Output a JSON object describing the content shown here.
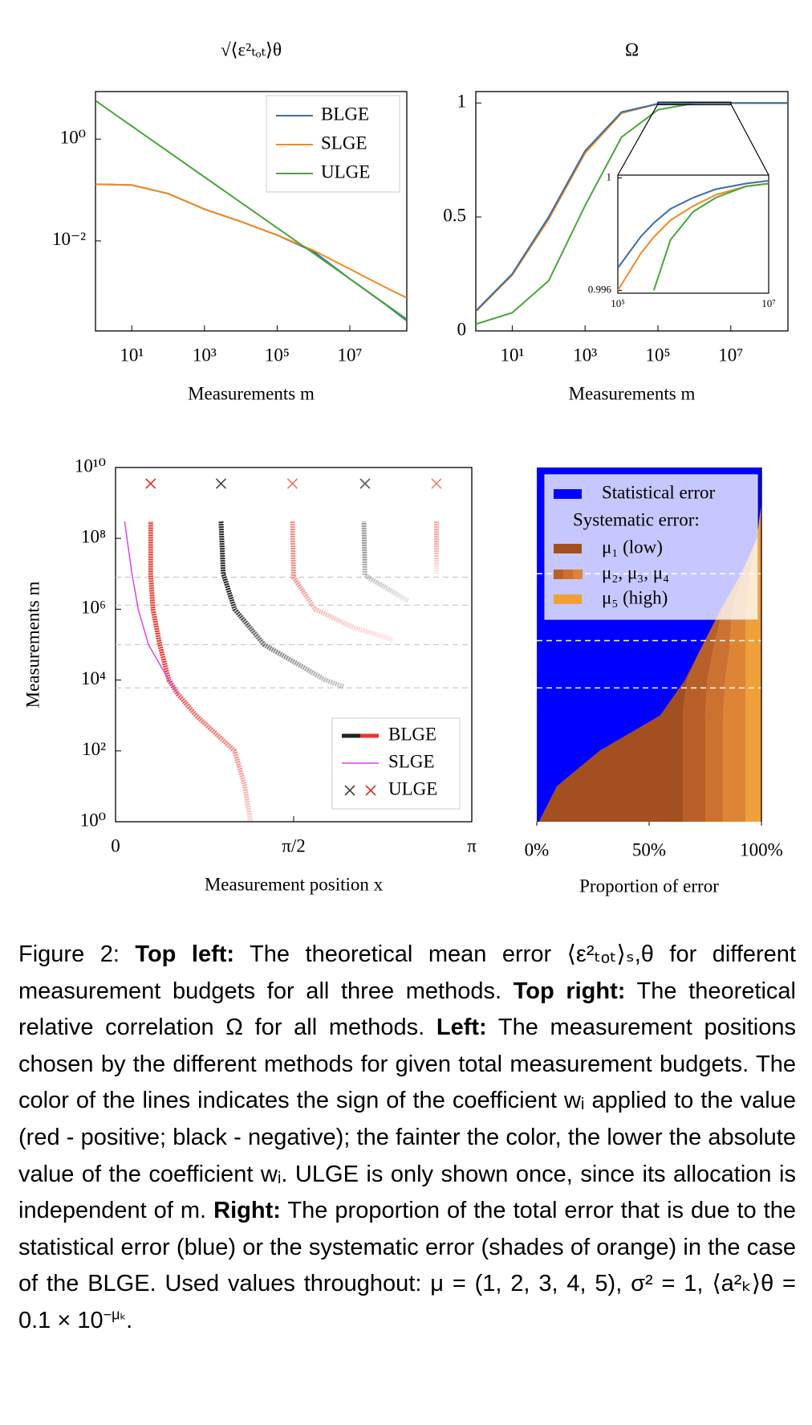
{
  "chart_data": [
    {
      "type": "line",
      "title": "√⟨ε²ₜₒₜ⟩θ",
      "xlabel": "Measurements m",
      "xscale": "log",
      "yscale": "log",
      "xlim": [
        1,
        370000000
      ],
      "ylim": [
        0.00017,
        8.6
      ],
      "xticks": [
        {
          "value": 10,
          "label": "10¹"
        },
        {
          "value": 1000,
          "label": "10³"
        },
        {
          "value": 100000,
          "label": "10⁵"
        },
        {
          "value": 10000000,
          "label": "10⁷"
        }
      ],
      "yticks": [
        {
          "value": 1,
          "label": "10⁰"
        },
        {
          "value": 0.01,
          "label": "10⁻²"
        }
      ],
      "legend": "upper right",
      "x": [
        1,
        10,
        100,
        1000,
        10000,
        100000,
        1000000,
        10000000,
        100000000,
        370000000
      ],
      "series": [
        {
          "name": "BLGE",
          "color": "#3a6ea5",
          "values": [
            0.13,
            0.125,
            0.085,
            0.042,
            0.024,
            0.013,
            0.0062,
            0.0018,
            0.00055,
            0.00027
          ]
        },
        {
          "name": "SLGE",
          "color": "#f08a24",
          "values": [
            0.13,
            0.125,
            0.085,
            0.042,
            0.024,
            0.013,
            0.0065,
            0.0028,
            0.0012,
            0.00076
          ]
        },
        {
          "name": "ULGE",
          "color": "#4aa53a",
          "values": [
            5.7,
            1.8,
            0.57,
            0.18,
            0.057,
            0.018,
            0.0057,
            0.0018,
            0.00056,
            0.00029
          ]
        }
      ]
    },
    {
      "type": "line",
      "title": "Ω",
      "xlabel": "Measurements m",
      "xscale": "log",
      "xlim": [
        1,
        370000000
      ],
      "ylim": [
        0,
        1.05
      ],
      "xticks": [
        {
          "value": 10,
          "label": "10¹"
        },
        {
          "value": 1000,
          "label": "10³"
        },
        {
          "value": 100000,
          "label": "10⁵"
        },
        {
          "value": 10000000,
          "label": "10⁷"
        }
      ],
      "yticks": [
        0,
        0.5,
        1
      ],
      "x": [
        1,
        10,
        100,
        1000,
        10000,
        100000,
        1000000,
        10000000,
        100000000,
        370000000
      ],
      "series": [
        {
          "name": "BLGE",
          "color": "#3a6ea5",
          "values": [
            0.088,
            0.25,
            0.5,
            0.79,
            0.96,
            0.9968,
            0.9993,
            0.9999,
            1,
            1
          ]
        },
        {
          "name": "SLGE",
          "color": "#f08a24",
          "values": [
            0.085,
            0.245,
            0.49,
            0.78,
            0.955,
            0.996,
            0.999,
            0.9998,
            1,
            1
          ]
        },
        {
          "name": "ULGE",
          "color": "#4aa53a",
          "values": [
            0.03,
            0.08,
            0.22,
            0.55,
            0.85,
            0.97,
            0.9988,
            0.9998,
            1,
            1
          ]
        }
      ],
      "inset": {
        "xscale": "log",
        "xlim": [
          100000,
          10000000
        ],
        "ylim": [
          0.9959,
          1.0001
        ],
        "xticks": [
          {
            "value": 100000,
            "label": "10⁵"
          },
          {
            "value": 10000000,
            "label": "10⁷"
          }
        ],
        "yticks": [
          0.996,
          1
        ],
        "x": [
          100000,
          200000,
          300000,
          500000,
          1000000,
          2000000,
          5000000,
          10000000
        ],
        "series": [
          {
            "color": "#3a6ea5",
            "values": [
              0.9968,
              0.9979,
              0.9984,
              0.9989,
              0.9993,
              0.9996,
              0.9998,
              0.9999
            ]
          },
          {
            "color": "#f08a24",
            "values": [
              0.996,
              0.9973,
              0.9979,
              0.9985,
              0.999,
              0.9994,
              0.9997,
              0.9998
            ]
          },
          {
            "color": "#4aa53a",
            "values": [
              null,
              null,
              0.996,
              0.9978,
              0.9988,
              0.9993,
              0.9997,
              0.9998
            ]
          }
        ]
      }
    },
    {
      "type": "positions",
      "xlabel": "Measurement position x",
      "ylabel": "Measurements m",
      "yscale": "log",
      "xlim": [
        0,
        3.14159
      ],
      "ylim": [
        1,
        10000000000
      ],
      "xticks": [
        0,
        {
          "value": 1.5708,
          "label": "π/2"
        },
        {
          "value": 3.14159,
          "label": "π"
        }
      ],
      "yticks": [
        {
          "value": 1,
          "label": "10⁰"
        },
        {
          "value": 100,
          "label": "10²"
        },
        {
          "value": 10000,
          "label": "10⁴"
        },
        {
          "value": 1000000,
          "label": "10⁶"
        },
        {
          "value": 100000000,
          "label": "10⁸"
        },
        {
          "value": 10000000000,
          "label": "10¹⁰"
        }
      ],
      "reference_lines": [
        8000000,
        1300000,
        100000,
        6000
      ],
      "legend": "lower right",
      "series": [
        {
          "name": "BLGE",
          "curves": [
            {
              "color": "#e8372b",
              "x": [
                1.19,
                1.14,
                1.05,
                0.71,
                0.55,
                0.47,
                0.39,
                0.33,
                0.31,
                0.31
              ],
              "values": [
                1,
                10,
                100,
                1000,
                4000,
                10000,
                100000,
                1000000,
                10000000,
                300000000
              ]
            },
            {
              "color": "#222222",
              "x": [
                2.01,
                1.85,
                1.31,
                1.05,
                0.95,
                0.93
              ],
              "values": [
                6500,
                10000,
                100000,
                1000000,
                10000000,
                300000000
              ]
            },
            {
              "color": "#f08a85",
              "x": [
                2.44,
                2.1,
                1.76,
                1.57,
                1.56
              ],
              "values": [
                140000,
                300000,
                1000000,
                8000000,
                300000000
              ]
            },
            {
              "color": "#999999",
              "x": [
                2.58,
                2.2,
                2.19
              ],
              "values": [
                1700000,
                9000000,
                300000000
              ]
            },
            {
              "color": "#f4a3a0",
              "x": [
                2.83,
                2.83
              ],
              "values": [
                10000000,
                300000000
              ]
            }
          ]
        },
        {
          "name": "SLGE",
          "color": "#e040f0",
          "x": [
            0.55,
            0.47,
            0.29,
            0.2,
            0.145,
            0.08
          ],
          "values": [
            4000,
            10000,
            100000,
            1000000,
            10000000,
            300000000
          ]
        },
        {
          "name": "ULGE",
          "x": [
            0.31,
            0.93,
            1.56,
            2.2,
            2.83
          ],
          "values": [
            3500000000,
            3500000000,
            3500000000,
            3500000000,
            3500000000
          ],
          "point_colors": [
            "#e03020",
            "#444444",
            "#f07060",
            "#555555",
            "#f08070"
          ]
        }
      ]
    },
    {
      "type": "area",
      "stacked": true,
      "orientation": "horizontal",
      "ylabel": "Proportion of error",
      "xscale": "log",
      "xlim": [
        1,
        10000000000
      ],
      "ylim": [
        0,
        100
      ],
      "yticks": [
        {
          "value": 0,
          "label": "0%"
        },
        {
          "value": 50,
          "label": "50%"
        },
        {
          "value": 100,
          "label": "100%"
        }
      ],
      "reference_lines": [
        10000000,
        130000,
        6000
      ],
      "legend_title": "Systematic error:",
      "x": [
        1,
        10,
        100,
        1000,
        10000,
        100000,
        1000000,
        10000000,
        100000000,
        1000000000,
        10000000000
      ],
      "series": [
        {
          "name": "Statistical error",
          "color": "#0000ff",
          "values": [
            1,
            9,
            28,
            55,
            66,
            74,
            82,
            91,
            98,
            100,
            100
          ]
        },
        {
          "name": "μ₁ (low)",
          "color": "#a34f1f",
          "values": [
            64,
            56,
            37,
            10,
            1,
            0,
            0,
            0,
            0,
            0,
            0
          ]
        },
        {
          "name": "μ₂, μ₃, μ₄",
          "parts": [
            {
              "color": "#b9602a",
              "values": [
                10,
                10,
                10,
                10,
                9,
                5,
                1,
                0,
                0,
                0,
                0
              ]
            },
            {
              "color": "#cc7230",
              "values": [
                8,
                8,
                8,
                8,
                8,
                7,
                4,
                1,
                0,
                0,
                0
              ]
            },
            {
              "color": "#dd8535",
              "values": [
                10,
                10,
                10,
                10,
                9,
                7,
                6,
                3,
                0,
                0,
                0
              ]
            }
          ]
        },
        {
          "name": "μ₅ (high)",
          "color": "#f0a038",
          "values": [
            7,
            7,
            7,
            7,
            7,
            7,
            7,
            5,
            2,
            0,
            0
          ]
        }
      ]
    }
  ],
  "caption": {
    "parts": [
      {
        "text": "Figure 2: "
      },
      {
        "text": "Top left:",
        "bold": true
      },
      {
        "text": " The theoretical mean error ⟨ε²ₜₒₜ⟩ₛ,θ for different measurement budgets for all three methods. "
      },
      {
        "text": "Top right:",
        "bold": true
      },
      {
        "text": " The theoretical relative correlation Ω for all methods. "
      },
      {
        "text": "Left:",
        "bold": true
      },
      {
        "text": " The measurement positions chosen by the different methods for given total measurement budgets. The color of the lines indicates the sign of the coefficient wᵢ applied to the value (red - positive; black - negative); the fainter the color, the lower the absolute value of the coefficient wᵢ. ULGE is only shown once, since its allocation is independent of m. "
      },
      {
        "text": "Right:",
        "bold": true
      },
      {
        "text": " The proportion of the total error that is due to the statistical error (blue) or the systematic error (shades of orange) in the case of the BLGE. Used values throughout: μ = (1, 2, 3, 4, 5), σ² = 1, ⟨a²ₖ⟩θ = 0.1 × 10"
      },
      {
        "text": "−μₖ",
        "sup": true
      },
      {
        "text": "."
      }
    ]
  }
}
